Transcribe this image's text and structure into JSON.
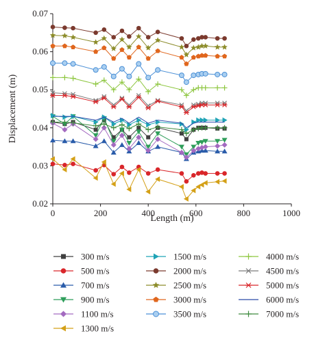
{
  "chart_data": {
    "type": "line",
    "xlabel": "Length (m)",
    "ylabel": "Displacement (m)",
    "xlim": [
      0,
      1000
    ],
    "ylim": [
      0.02,
      0.07
    ],
    "x_ticks": [
      0,
      200,
      400,
      600,
      800,
      1000
    ],
    "y_ticks": [
      0.02,
      0.03,
      0.04,
      0.05,
      0.06,
      0.07
    ],
    "x_tick_labels": [
      "0",
      "200",
      "400",
      "600",
      "800",
      "1000"
    ],
    "y_tick_labels": [
      "0.02",
      "0.03",
      "0.04",
      "0.05",
      "0.06",
      "0.07"
    ],
    "grid": false,
    "legend_position": "bottom",
    "x": [
      0,
      50,
      85,
      180,
      215,
      255,
      290,
      320,
      360,
      400,
      440,
      540,
      560,
      590,
      610,
      625,
      640,
      690,
      720
    ],
    "series": [
      {
        "name": "300 m/s",
        "color": "#404040",
        "marker": "square",
        "values": [
          0.0415,
          0.041,
          0.0415,
          0.0395,
          0.042,
          0.0375,
          0.0395,
          0.0375,
          0.04,
          0.0375,
          0.04,
          0.0385,
          0.037,
          0.0395,
          0.04,
          0.04,
          0.04,
          0.0398,
          0.0398
        ]
      },
      {
        "name": "500 m/s",
        "color": "#d9262a",
        "marker": "circle",
        "values": [
          0.0305,
          0.0302,
          0.0305,
          0.0288,
          0.0302,
          0.0278,
          0.0297,
          0.0282,
          0.0297,
          0.028,
          0.029,
          0.028,
          0.0259,
          0.0275,
          0.028,
          0.0282,
          0.028,
          0.028,
          0.028
        ]
      },
      {
        "name": "700 m/s",
        "color": "#2a5caa",
        "marker": "triangle-up",
        "values": [
          0.0367,
          0.0365,
          0.0365,
          0.0352,
          0.0365,
          0.0335,
          0.0355,
          0.0338,
          0.036,
          0.0338,
          0.035,
          0.0335,
          0.0318,
          0.0335,
          0.0338,
          0.034,
          0.034,
          0.0338,
          0.0338
        ]
      },
      {
        "name": "900 m/s",
        "color": "#2e9e5a",
        "marker": "triangle-down",
        "values": [
          0.043,
          0.041,
          0.043,
          0.038,
          0.0425,
          0.0365,
          0.0395,
          0.036,
          0.039,
          0.035,
          0.0385,
          0.035,
          0.033,
          0.035,
          0.036,
          0.0362,
          0.0365,
          0.0365,
          0.0368
        ]
      },
      {
        "name": "1100 m/s",
        "color": "#a36ac0",
        "marker": "diamond",
        "values": [
          0.0412,
          0.0395,
          0.041,
          0.037,
          0.04,
          0.0355,
          0.038,
          0.0345,
          0.0375,
          0.034,
          0.037,
          0.0335,
          0.0322,
          0.034,
          0.0345,
          0.0348,
          0.035,
          0.0352,
          0.0355
        ]
      },
      {
        "name": "1300 m/s",
        "color": "#d4a017",
        "marker": "triangle-left",
        "values": [
          0.0318,
          0.029,
          0.0318,
          0.0268,
          0.031,
          0.0252,
          0.028,
          0.0238,
          0.029,
          0.0232,
          0.0265,
          0.0245,
          0.0213,
          0.0235,
          0.0245,
          0.025,
          0.0255,
          0.0258,
          0.026
        ]
      },
      {
        "name": "1500 m/s",
        "color": "#1fa3b6",
        "marker": "triangle-right",
        "values": [
          0.0432,
          0.0428,
          0.043,
          0.0415,
          0.0428,
          0.041,
          0.042,
          0.0408,
          0.042,
          0.0408,
          0.0415,
          0.041,
          0.0395,
          0.0415,
          0.042,
          0.042,
          0.042,
          0.042,
          0.042
        ]
      },
      {
        "name": "2000 m/s",
        "color": "#7b3a2e",
        "marker": "circle",
        "values": [
          0.0665,
          0.0663,
          0.0662,
          0.065,
          0.0658,
          0.0638,
          0.0655,
          0.064,
          0.0662,
          0.0638,
          0.0652,
          0.0635,
          0.0615,
          0.0632,
          0.0635,
          0.0638,
          0.0638,
          0.0635,
          0.0635
        ]
      },
      {
        "name": "2500 m/s",
        "color": "#8c8c2a",
        "marker": "star",
        "values": [
          0.0643,
          0.0642,
          0.0638,
          0.0625,
          0.0635,
          0.0608,
          0.0632,
          0.0612,
          0.064,
          0.061,
          0.063,
          0.0612,
          0.0592,
          0.061,
          0.0612,
          0.0615,
          0.0615,
          0.0612,
          0.0612
        ]
      },
      {
        "name": "3000 m/s",
        "color": "#e0661d",
        "marker": "pentagon",
        "values": [
          0.0615,
          0.0615,
          0.0612,
          0.06,
          0.061,
          0.0582,
          0.0605,
          0.0585,
          0.0612,
          0.0582,
          0.0602,
          0.0585,
          0.0568,
          0.0585,
          0.0588,
          0.059,
          0.059,
          0.0588,
          0.0588
        ]
      },
      {
        "name": "3500 m/s",
        "color": "#4a8fd6",
        "marker": "circle-light",
        "values": [
          0.057,
          0.057,
          0.0568,
          0.0552,
          0.056,
          0.0535,
          0.0555,
          0.0535,
          0.0568,
          0.0532,
          0.0552,
          0.0538,
          0.052,
          0.0538,
          0.054,
          0.0542,
          0.0542,
          0.054,
          0.054
        ]
      },
      {
        "name": "4000 m/s",
        "color": "#8dc63f",
        "marker": "plus",
        "values": [
          0.0532,
          0.0532,
          0.053,
          0.0515,
          0.0525,
          0.05,
          0.052,
          0.05,
          0.0528,
          0.0495,
          0.0515,
          0.05,
          0.0485,
          0.05,
          0.0505,
          0.0505,
          0.0505,
          0.0505,
          0.0505
        ]
      },
      {
        "name": "4500 m/s",
        "color": "#7a7a7a",
        "marker": "x",
        "values": [
          0.0492,
          0.049,
          0.0488,
          0.0472,
          0.0482,
          0.046,
          0.0478,
          0.046,
          0.0485,
          0.0458,
          0.0472,
          0.046,
          0.0445,
          0.046,
          0.0462,
          0.0465,
          0.0465,
          0.0465,
          0.0465
        ]
      },
      {
        "name": "5000 m/s",
        "color": "#d9262a",
        "marker": "asterisk",
        "values": [
          0.0485,
          0.0485,
          0.0482,
          0.0468,
          0.0478,
          0.0455,
          0.0475,
          0.0455,
          0.048,
          0.0452,
          0.047,
          0.0455,
          0.044,
          0.0455,
          0.0458,
          0.046,
          0.046,
          0.046,
          0.046
        ]
      },
      {
        "name": "6000 m/s",
        "color": "#2a4aa8",
        "marker": "none",
        "values": [
          0.043,
          0.043,
          0.043,
          0.042,
          0.0428,
          0.0415,
          0.0425,
          0.0412,
          0.0428,
          0.0412,
          0.042,
          0.0412,
          0.04,
          0.0412,
          0.0415,
          0.0415,
          0.0415,
          0.0415,
          0.0415
        ]
      },
      {
        "name": "7000 m/s",
        "color": "#3e8a3e",
        "marker": "plus",
        "values": [
          0.0415,
          0.0415,
          0.0413,
          0.0405,
          0.041,
          0.04,
          0.0408,
          0.0398,
          0.041,
          0.0395,
          0.0402,
          0.0395,
          0.0385,
          0.0395,
          0.0398,
          0.04,
          0.04,
          0.04,
          0.04
        ]
      }
    ]
  }
}
